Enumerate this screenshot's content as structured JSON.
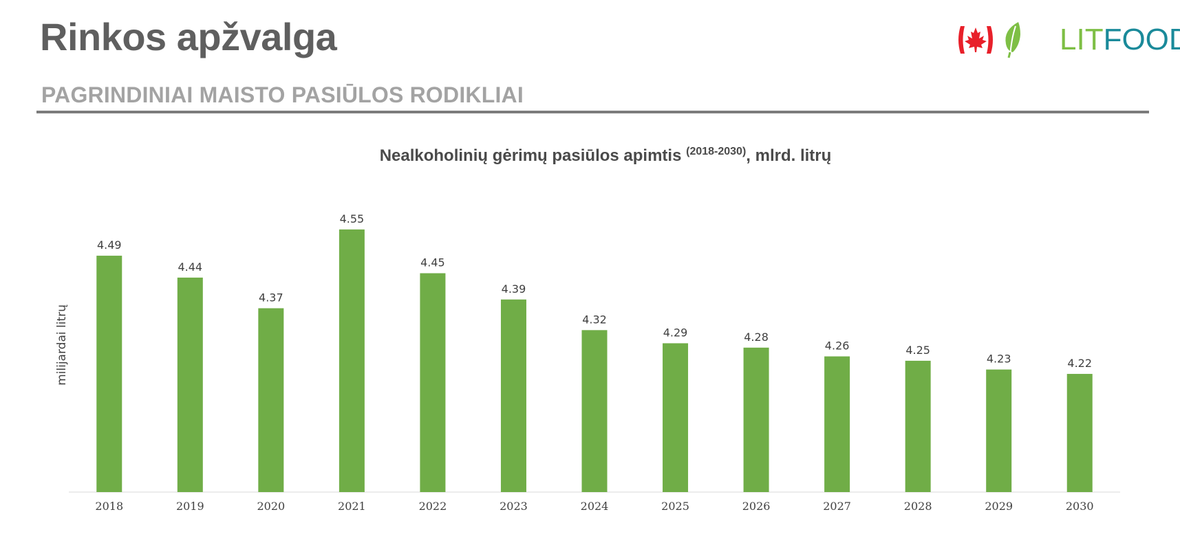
{
  "header": {
    "title": "Rinkos apžvalga",
    "section": "PAGRINDINIAI MAISTO PASIŪLOS RODIKLIAI"
  },
  "logo": {
    "flag": "canada-flag",
    "icon": "leaf-icon",
    "text_lit": "LIT",
    "text_food": "FOOD",
    "colors": {
      "flag_red": "#e8202a",
      "leaf_green": "#7ebf45",
      "lit": "#7ebf45",
      "food": "#1a8a9a"
    }
  },
  "chart_data": {
    "type": "bar",
    "title": "Nealkoholinių gėrimų pasiūlos apimtis",
    "title_sup": "(2018-2030)",
    "title_suffix": ", mlrd. litrų",
    "ylabel": "milijardai litrų",
    "xlabel": "",
    "categories": [
      "2018",
      "2019",
      "2020",
      "2021",
      "2022",
      "2023",
      "2024",
      "2025",
      "2026",
      "2027",
      "2028",
      "2029",
      "2030"
    ],
    "values": [
      4.49,
      4.44,
      4.37,
      4.55,
      4.45,
      4.39,
      4.32,
      4.29,
      4.28,
      4.26,
      4.25,
      4.23,
      4.22
    ],
    "ylim": [
      3.95,
      4.6
    ],
    "grid": false,
    "legend": "none",
    "colors": {
      "bar": "#70ad47",
      "axis": "#d9d9d9"
    }
  }
}
